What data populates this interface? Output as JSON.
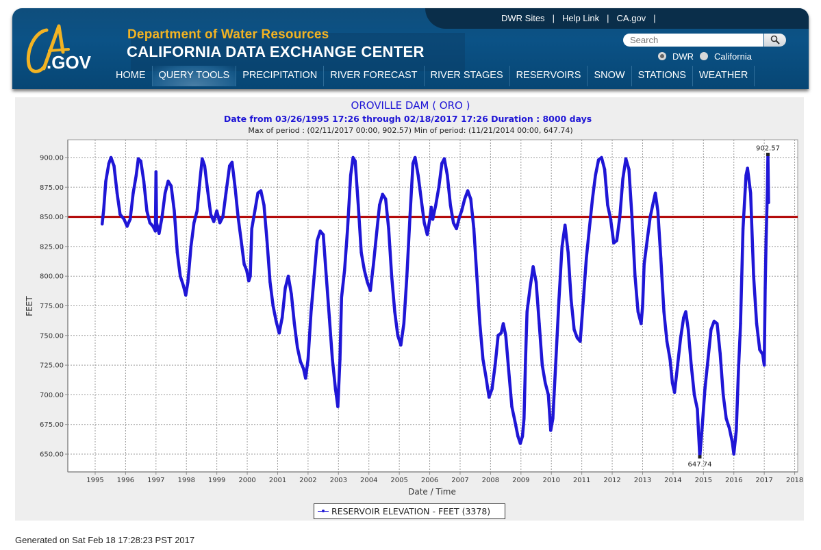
{
  "header": {
    "utility_links": [
      "DWR Sites",
      "Help Link",
      "CA.gov"
    ],
    "logo_text": {
      "ca": "CA",
      "gov": ".GOV"
    },
    "department": "Department of Water Resources",
    "site_title": "CALIFORNIA DATA EXCHANGE CENTER",
    "search_placeholder": "Search",
    "search_scope": [
      {
        "label": "DWR",
        "selected": true
      },
      {
        "label": "California",
        "selected": false
      }
    ],
    "nav": [
      {
        "label": "HOME",
        "active": false
      },
      {
        "label": "QUERY TOOLS",
        "active": true
      },
      {
        "label": "PRECIPITATION",
        "active": false
      },
      {
        "label": "RIVER FORECAST",
        "active": false
      },
      {
        "label": "RIVER STAGES",
        "active": false
      },
      {
        "label": "RESERVOIRS",
        "active": false
      },
      {
        "label": "SNOW",
        "active": false
      },
      {
        "label": "STATIONS",
        "active": false
      },
      {
        "label": "WEATHER",
        "active": false
      }
    ]
  },
  "footer": {
    "generated": "Generated on Sat Feb 18 17:28:23 PST 2017"
  },
  "chart_data": {
    "type": "line",
    "title": "OROVILLE DAM ( ORO )",
    "subtitle": "Date from 03/26/1995 17:26 through 02/18/2017 17:26 Duration : 8000 days",
    "stats": "Max of period : (02/11/2017 00:00, 902.57)  Min of period: (11/21/2014 00:00,  647.74)",
    "xlabel": "Date / Time",
    "ylabel": "FEET",
    "xlim": [
      1994.1,
      2018.1
    ],
    "ylim": [
      635,
      915
    ],
    "x_ticks": [
      1995,
      1996,
      1997,
      1998,
      1999,
      2000,
      2001,
      2002,
      2003,
      2004,
      2005,
      2006,
      2007,
      2008,
      2009,
      2010,
      2011,
      2012,
      2013,
      2014,
      2015,
      2016,
      2017,
      2018
    ],
    "y_ticks": [
      "650.00",
      "675.00",
      "700.00",
      "725.00",
      "750.00",
      "775.00",
      "800.00",
      "825.00",
      "850.00",
      "875.00",
      "900.00"
    ],
    "grid": true,
    "reference_line": {
      "value": 850,
      "color": "#b00000"
    },
    "series": [
      {
        "name": "RESERVOIR ELEVATION - FEET (3378)",
        "color": "#1f16d6",
        "points": [
          [
            1995.23,
            844
          ],
          [
            1995.28,
            856
          ],
          [
            1995.35,
            880
          ],
          [
            1995.45,
            895
          ],
          [
            1995.52,
            900
          ],
          [
            1995.62,
            893
          ],
          [
            1995.72,
            870
          ],
          [
            1995.82,
            852
          ],
          [
            1995.95,
            848
          ],
          [
            1996.05,
            842
          ],
          [
            1996.15,
            848
          ],
          [
            1996.25,
            870
          ],
          [
            1996.35,
            885
          ],
          [
            1996.42,
            899
          ],
          [
            1996.5,
            897
          ],
          [
            1996.6,
            880
          ],
          [
            1996.7,
            855
          ],
          [
            1996.8,
            845
          ],
          [
            1996.9,
            842
          ],
          [
            1996.98,
            838
          ],
          [
            1997.0,
            888
          ],
          [
            1997.02,
            845
          ],
          [
            1997.1,
            836
          ],
          [
            1997.2,
            850
          ],
          [
            1997.3,
            870
          ],
          [
            1997.4,
            880
          ],
          [
            1997.5,
            876
          ],
          [
            1997.6,
            855
          ],
          [
            1997.7,
            820
          ],
          [
            1997.8,
            800
          ],
          [
            1997.9,
            792
          ],
          [
            1997.98,
            784
          ],
          [
            1998.05,
            795
          ],
          [
            1998.15,
            825
          ],
          [
            1998.25,
            845
          ],
          [
            1998.35,
            855
          ],
          [
            1998.45,
            882
          ],
          [
            1998.52,
            899
          ],
          [
            1998.6,
            893
          ],
          [
            1998.7,
            872
          ],
          [
            1998.8,
            852
          ],
          [
            1998.9,
            846
          ],
          [
            1999.0,
            855
          ],
          [
            1999.1,
            845
          ],
          [
            1999.2,
            850
          ],
          [
            1999.3,
            870
          ],
          [
            1999.42,
            893
          ],
          [
            1999.5,
            896
          ],
          [
            1999.6,
            875
          ],
          [
            1999.7,
            850
          ],
          [
            1999.8,
            830
          ],
          [
            1999.9,
            810
          ],
          [
            1999.98,
            805
          ],
          [
            2000.05,
            796
          ],
          [
            2000.1,
            800
          ],
          [
            2000.15,
            840
          ],
          [
            2000.25,
            855
          ],
          [
            2000.35,
            870
          ],
          [
            2000.45,
            872
          ],
          [
            2000.55,
            860
          ],
          [
            2000.65,
            830
          ],
          [
            2000.75,
            795
          ],
          [
            2000.85,
            775
          ],
          [
            2000.95,
            762
          ],
          [
            2001.05,
            752
          ],
          [
            2001.15,
            765
          ],
          [
            2001.25,
            790
          ],
          [
            2001.35,
            800
          ],
          [
            2001.45,
            785
          ],
          [
            2001.55,
            760
          ],
          [
            2001.65,
            740
          ],
          [
            2001.75,
            728
          ],
          [
            2001.85,
            722
          ],
          [
            2001.92,
            714
          ],
          [
            2002.0,
            730
          ],
          [
            2002.1,
            770
          ],
          [
            2002.2,
            800
          ],
          [
            2002.3,
            830
          ],
          [
            2002.4,
            838
          ],
          [
            2002.5,
            835
          ],
          [
            2002.6,
            800
          ],
          [
            2002.7,
            765
          ],
          [
            2002.8,
            730
          ],
          [
            2002.9,
            705
          ],
          [
            2002.98,
            690
          ],
          [
            2003.05,
            730
          ],
          [
            2003.1,
            782
          ],
          [
            2003.2,
            805
          ],
          [
            2003.3,
            840
          ],
          [
            2003.4,
            885
          ],
          [
            2003.48,
            900
          ],
          [
            2003.55,
            897
          ],
          [
            2003.65,
            860
          ],
          [
            2003.75,
            820
          ],
          [
            2003.85,
            805
          ],
          [
            2003.95,
            795
          ],
          [
            2004.05,
            788
          ],
          [
            2004.15,
            810
          ],
          [
            2004.25,
            835
          ],
          [
            2004.35,
            860
          ],
          [
            2004.45,
            869
          ],
          [
            2004.55,
            865
          ],
          [
            2004.65,
            840
          ],
          [
            2004.75,
            800
          ],
          [
            2004.85,
            770
          ],
          [
            2004.95,
            750
          ],
          [
            2005.05,
            742
          ],
          [
            2005.15,
            760
          ],
          [
            2005.25,
            800
          ],
          [
            2005.35,
            850
          ],
          [
            2005.45,
            895
          ],
          [
            2005.52,
            900
          ],
          [
            2005.62,
            885
          ],
          [
            2005.72,
            865
          ],
          [
            2005.82,
            845
          ],
          [
            2005.92,
            835
          ],
          [
            2006.0,
            848
          ],
          [
            2006.05,
            858
          ],
          [
            2006.1,
            848
          ],
          [
            2006.2,
            860
          ],
          [
            2006.3,
            875
          ],
          [
            2006.4,
            895
          ],
          [
            2006.48,
            899
          ],
          [
            2006.58,
            885
          ],
          [
            2006.68,
            860
          ],
          [
            2006.78,
            845
          ],
          [
            2006.88,
            840
          ],
          [
            2006.98,
            850
          ],
          [
            2007.05,
            855
          ],
          [
            2007.15,
            865
          ],
          [
            2007.25,
            872
          ],
          [
            2007.35,
            865
          ],
          [
            2007.45,
            840
          ],
          [
            2007.55,
            800
          ],
          [
            2007.65,
            760
          ],
          [
            2007.75,
            730
          ],
          [
            2007.85,
            715
          ],
          [
            2007.95,
            698
          ],
          [
            2008.05,
            705
          ],
          [
            2008.15,
            725
          ],
          [
            2008.25,
            750
          ],
          [
            2008.35,
            752
          ],
          [
            2008.42,
            760
          ],
          [
            2008.5,
            750
          ],
          [
            2008.6,
            720
          ],
          [
            2008.7,
            690
          ],
          [
            2008.8,
            678
          ],
          [
            2008.9,
            665
          ],
          [
            2008.98,
            659
          ],
          [
            2009.05,
            665
          ],
          [
            2009.1,
            680
          ],
          [
            2009.15,
            730
          ],
          [
            2009.2,
            770
          ],
          [
            2009.3,
            790
          ],
          [
            2009.4,
            808
          ],
          [
            2009.5,
            795
          ],
          [
            2009.6,
            760
          ],
          [
            2009.7,
            725
          ],
          [
            2009.8,
            710
          ],
          [
            2009.9,
            700
          ],
          [
            2009.98,
            670
          ],
          [
            2010.05,
            680
          ],
          [
            2010.15,
            730
          ],
          [
            2010.25,
            780
          ],
          [
            2010.35,
            825
          ],
          [
            2010.45,
            843
          ],
          [
            2010.55,
            820
          ],
          [
            2010.65,
            780
          ],
          [
            2010.75,
            755
          ],
          [
            2010.85,
            748
          ],
          [
            2010.95,
            745
          ],
          [
            2011.05,
            780
          ],
          [
            2011.15,
            815
          ],
          [
            2011.25,
            840
          ],
          [
            2011.35,
            865
          ],
          [
            2011.45,
            885
          ],
          [
            2011.55,
            898
          ],
          [
            2011.65,
            900
          ],
          [
            2011.75,
            890
          ],
          [
            2011.85,
            860
          ],
          [
            2011.95,
            848
          ],
          [
            2012.05,
            828
          ],
          [
            2012.15,
            830
          ],
          [
            2012.25,
            850
          ],
          [
            2012.35,
            882
          ],
          [
            2012.45,
            899
          ],
          [
            2012.55,
            890
          ],
          [
            2012.65,
            850
          ],
          [
            2012.75,
            800
          ],
          [
            2012.85,
            770
          ],
          [
            2012.95,
            760
          ],
          [
            2013.0,
            775
          ],
          [
            2013.05,
            810
          ],
          [
            2013.15,
            830
          ],
          [
            2013.25,
            850
          ],
          [
            2013.35,
            862
          ],
          [
            2013.42,
            870
          ],
          [
            2013.5,
            855
          ],
          [
            2013.6,
            815
          ],
          [
            2013.7,
            770
          ],
          [
            2013.8,
            745
          ],
          [
            2013.9,
            730
          ],
          [
            2013.98,
            710
          ],
          [
            2014.05,
            702
          ],
          [
            2014.15,
            725
          ],
          [
            2014.25,
            748
          ],
          [
            2014.35,
            765
          ],
          [
            2014.42,
            770
          ],
          [
            2014.5,
            755
          ],
          [
            2014.6,
            725
          ],
          [
            2014.7,
            700
          ],
          [
            2014.8,
            688
          ],
          [
            2014.88,
            647.74
          ],
          [
            2014.95,
            670
          ],
          [
            2015.05,
            705
          ],
          [
            2015.15,
            730
          ],
          [
            2015.25,
            755
          ],
          [
            2015.35,
            762
          ],
          [
            2015.45,
            760
          ],
          [
            2015.55,
            735
          ],
          [
            2015.65,
            700
          ],
          [
            2015.75,
            680
          ],
          [
            2015.85,
            672
          ],
          [
            2015.95,
            660
          ],
          [
            2016.0,
            650
          ],
          [
            2016.08,
            670
          ],
          [
            2016.15,
            720
          ],
          [
            2016.22,
            760
          ],
          [
            2016.3,
            840
          ],
          [
            2016.4,
            885
          ],
          [
            2016.45,
            891
          ],
          [
            2016.55,
            870
          ],
          [
            2016.65,
            800
          ],
          [
            2016.75,
            760
          ],
          [
            2016.85,
            738
          ],
          [
            2016.95,
            734
          ],
          [
            2017.0,
            725
          ],
          [
            2017.03,
            790
          ],
          [
            2017.06,
            830
          ],
          [
            2017.08,
            850
          ],
          [
            2017.1,
            870
          ],
          [
            2017.12,
            902.57
          ],
          [
            2017.14,
            862
          ]
        ]
      }
    ],
    "annotations": [
      {
        "label": "902.57",
        "x": 2017.12,
        "y": 902.57,
        "position": "above"
      },
      {
        "label": "647.74",
        "x": 2014.88,
        "y": 647.74,
        "position": "below"
      }
    ],
    "legend": {
      "entries": [
        "RESERVOIR ELEVATION - FEET (3378)"
      ],
      "placement": "bottom-center"
    }
  }
}
